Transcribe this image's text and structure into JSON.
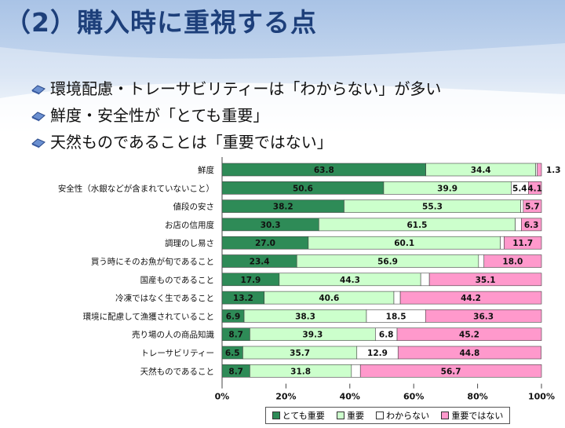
{
  "header": {
    "title": "（2）購入時に重視する点"
  },
  "bullets": [
    "環境配慮・トレーサビリティーは「わからない」が多い",
    "鮮度・安全性が「とても重要」",
    "天然ものであることは「重要ではない」"
  ],
  "colors": {
    "title": "#1d3f7a",
    "very_important": "#2e8b57",
    "important": "#ccffcc",
    "unknown": "#ffffff",
    "not_important": "#ff99cc"
  },
  "chart_data": {
    "type": "bar",
    "orientation": "horizontal",
    "stacked": true,
    "percent": true,
    "categories": [
      "鮮度",
      "安全性（水銀などが含まれていないこと）",
      "値段の安さ",
      "お店の信用度",
      "調理のし易さ",
      "買う時にそのお魚が旬であること",
      "国産ものであること",
      "冷凍ではなく生であること",
      "環境に配慮して漁獲されていること",
      "売り場の人の商品知識",
      "トレーサビリティー",
      "天然ものであること"
    ],
    "series": [
      {
        "name": "とても重要",
        "color": "#2e8b57",
        "values": [
          63.8,
          50.6,
          38.2,
          30.3,
          27.0,
          23.4,
          17.9,
          13.2,
          6.9,
          8.7,
          6.5,
          8.7
        ],
        "labels": [
          "63.8",
          "50.6",
          "38.2",
          "30.3",
          "27.0",
          "23.4",
          "17.9",
          "13.2",
          "6.9",
          "8.7",
          "6.5",
          "8.7"
        ]
      },
      {
        "name": "重要",
        "color": "#ccffcc",
        "values": [
          34.4,
          39.9,
          55.3,
          61.5,
          60.1,
          56.9,
          44.3,
          40.6,
          38.3,
          39.3,
          35.7,
          31.8
        ],
        "labels": [
          "34.4",
          "39.9",
          "55.3",
          "61.5",
          "60.1",
          "56.9",
          "44.3",
          "40.6",
          "38.3",
          "39.3",
          "35.7",
          "31.8"
        ]
      },
      {
        "name": "わからない",
        "color": "#ffffff",
        "values": [
          0.5,
          5.4,
          0.8,
          1.9,
          1.2,
          1.7,
          2.7,
          2.0,
          18.5,
          6.8,
          12.9,
          2.8
        ],
        "labels": [
          "",
          "5.4",
          "",
          "",
          "",
          "",
          "",
          "",
          "18.5",
          "6.8",
          "12.9",
          ""
        ]
      },
      {
        "name": "重要ではない",
        "color": "#ff99cc",
        "values": [
          1.3,
          4.1,
          5.7,
          6.3,
          11.7,
          18.0,
          35.1,
          44.2,
          36.3,
          45.2,
          44.8,
          56.7
        ],
        "labels": [
          "1.3",
          "4.1",
          "5.7",
          "6.3",
          "11.7",
          "18.0",
          "35.1",
          "44.2",
          "36.3",
          "45.2",
          "44.8",
          "56.7"
        ]
      }
    ],
    "xlim": [
      0,
      100
    ],
    "xticks": [
      "0%",
      "20%",
      "40%",
      "60%",
      "80%",
      "100%"
    ],
    "grid": false,
    "legend": "bottom"
  }
}
